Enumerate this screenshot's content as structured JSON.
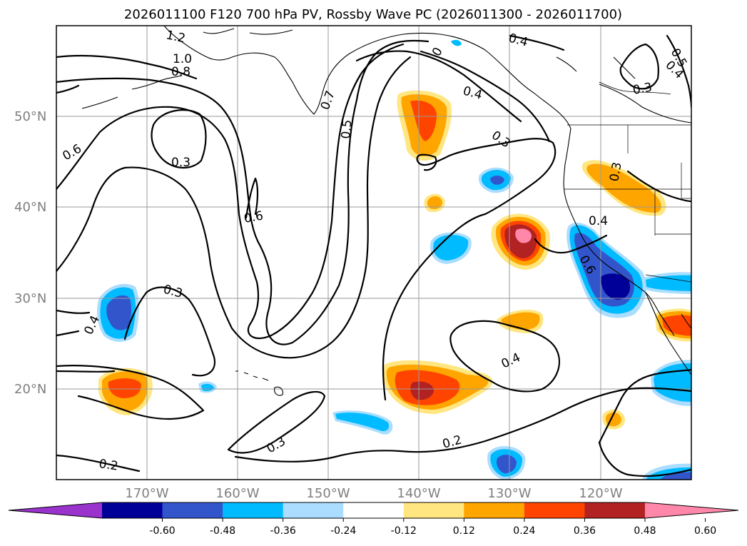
{
  "chart_data": {
    "type": "contour-map",
    "title": "2026011100 F120 700 hPa PV, Rossby Wave PC (2026011300 - 2026011700)",
    "lon_range": [
      -180,
      -110
    ],
    "lat_range": [
      10,
      60
    ],
    "lat_ticks": [
      "50°N",
      "40°N",
      "30°N",
      "20°N"
    ],
    "lon_ticks": [
      "170°W",
      "160°W",
      "150°W",
      "140°W",
      "130°W",
      "120°W"
    ],
    "contour_labels": [
      "1.2",
      "1.0",
      "0.8",
      "0.7",
      "0.5",
      "0.6",
      "0.3",
      "0.6",
      "0.3",
      "0.4",
      "0.2",
      "0.3",
      "0.2",
      "0.4",
      "0.4",
      "0.3",
      "0.4",
      "0.3",
      "0.5",
      "0.4",
      "0.6",
      "0.4",
      "0.3",
      "0"
    ],
    "colorbar": {
      "tick_labels": [
        "-0.60",
        "-0.48",
        "-0.36",
        "-0.24",
        "-0.12",
        "0.12",
        "0.24",
        "0.36",
        "0.48",
        "0.60"
      ],
      "colors": [
        "#9933cc",
        "#000099",
        "#3355cc",
        "#00bbff",
        "#aaddff",
        "#ffffff",
        "#ffe680",
        "#ffa500",
        "#ff4400",
        "#b22222",
        "#ff88aa"
      ],
      "extend": "both"
    }
  }
}
